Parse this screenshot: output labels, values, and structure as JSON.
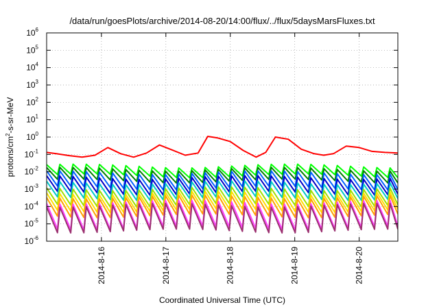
{
  "chart_data": {
    "type": "line",
    "title": "/data/run/goesPlots/archive/2014-08-20/14:00/flux/../flux/5daysMarsFluxes.txt",
    "xlabel": "Coordinated Universal Time (UTC)",
    "ylabel": {
      "base": "protons/cm",
      "sup": "2",
      "rest": "-s-sr-MeV"
    },
    "yscale": "log",
    "ylim_exponents": [
      -6,
      6
    ],
    "y_ticks": [
      {
        "base": "10",
        "exp": "-6"
      },
      {
        "base": "10",
        "exp": "-5"
      },
      {
        "base": "10",
        "exp": "-4"
      },
      {
        "base": "10",
        "exp": "-3"
      },
      {
        "base": "10",
        "exp": "-2"
      },
      {
        "base": "10",
        "exp": "-1"
      },
      {
        "base": "10",
        "exp": "0"
      },
      {
        "base": "10",
        "exp": "1"
      },
      {
        "base": "10",
        "exp": "2"
      },
      {
        "base": "10",
        "exp": "3"
      },
      {
        "base": "10",
        "exp": "4"
      },
      {
        "base": "10",
        "exp": "5"
      },
      {
        "base": "10",
        "exp": "6"
      }
    ],
    "x_ticks": [
      "2014-8-16",
      "2014-8-17",
      "2014-8-18",
      "2014-8-19",
      "2014-8-20"
    ],
    "xlim_days": [
      15.15,
      20.6
    ],
    "grid": true,
    "series": [
      {
        "color": "#ff0000",
        "x": [
          15.15,
          15.3,
          15.5,
          15.7,
          15.9,
          16.1,
          16.3,
          16.5,
          16.7,
          16.9,
          17.1,
          17.3,
          17.5,
          17.65,
          17.8,
          18.0,
          18.2,
          18.4,
          18.55,
          18.7,
          18.9,
          19.1,
          19.3,
          19.45,
          19.6,
          19.8,
          20.0,
          20.2,
          20.4,
          20.6
        ],
        "y": [
          0.13,
          0.11,
          0.085,
          0.07,
          0.09,
          0.25,
          0.11,
          0.07,
          0.12,
          0.35,
          0.18,
          0.09,
          0.12,
          1.1,
          0.9,
          0.55,
          0.17,
          0.07,
          0.13,
          1.0,
          0.75,
          0.2,
          0.11,
          0.09,
          0.11,
          0.3,
          0.25,
          0.15,
          0.13,
          0.12
        ]
      },
      {
        "color": "#00ff00",
        "base": 0.017,
        "low": 0.006,
        "amp": 1.3
      },
      {
        "color": "#008000",
        "base": 0.012,
        "low": 0.003,
        "amp": 1.2
      },
      {
        "color": "#0060ff",
        "base": 0.007,
        "low": 0.0012,
        "amp": 1.3
      },
      {
        "color": "#0000c8",
        "base": 0.004,
        "low": 0.0006,
        "amp": 1.2
      },
      {
        "color": "#00c8c8",
        "base": 0.002,
        "low": 0.0003,
        "amp": 1.2
      },
      {
        "color": "#a0e000",
        "base": 0.0009,
        "low": 0.00012,
        "amp": 1.2
      },
      {
        "color": "#ffe000",
        "base": 0.0005,
        "low": 6e-05,
        "amp": 1.2
      },
      {
        "color": "#ffa000",
        "base": 0.0003,
        "low": 3e-05,
        "amp": 1.2
      },
      {
        "color": "#ff40ff",
        "base": 0.00015,
        "low": 6e-06,
        "amp": 1.2
      },
      {
        "color": "#9b3070",
        "base": 0.0001,
        "low": 4e-06,
        "amp": 1.2
      }
    ]
  }
}
